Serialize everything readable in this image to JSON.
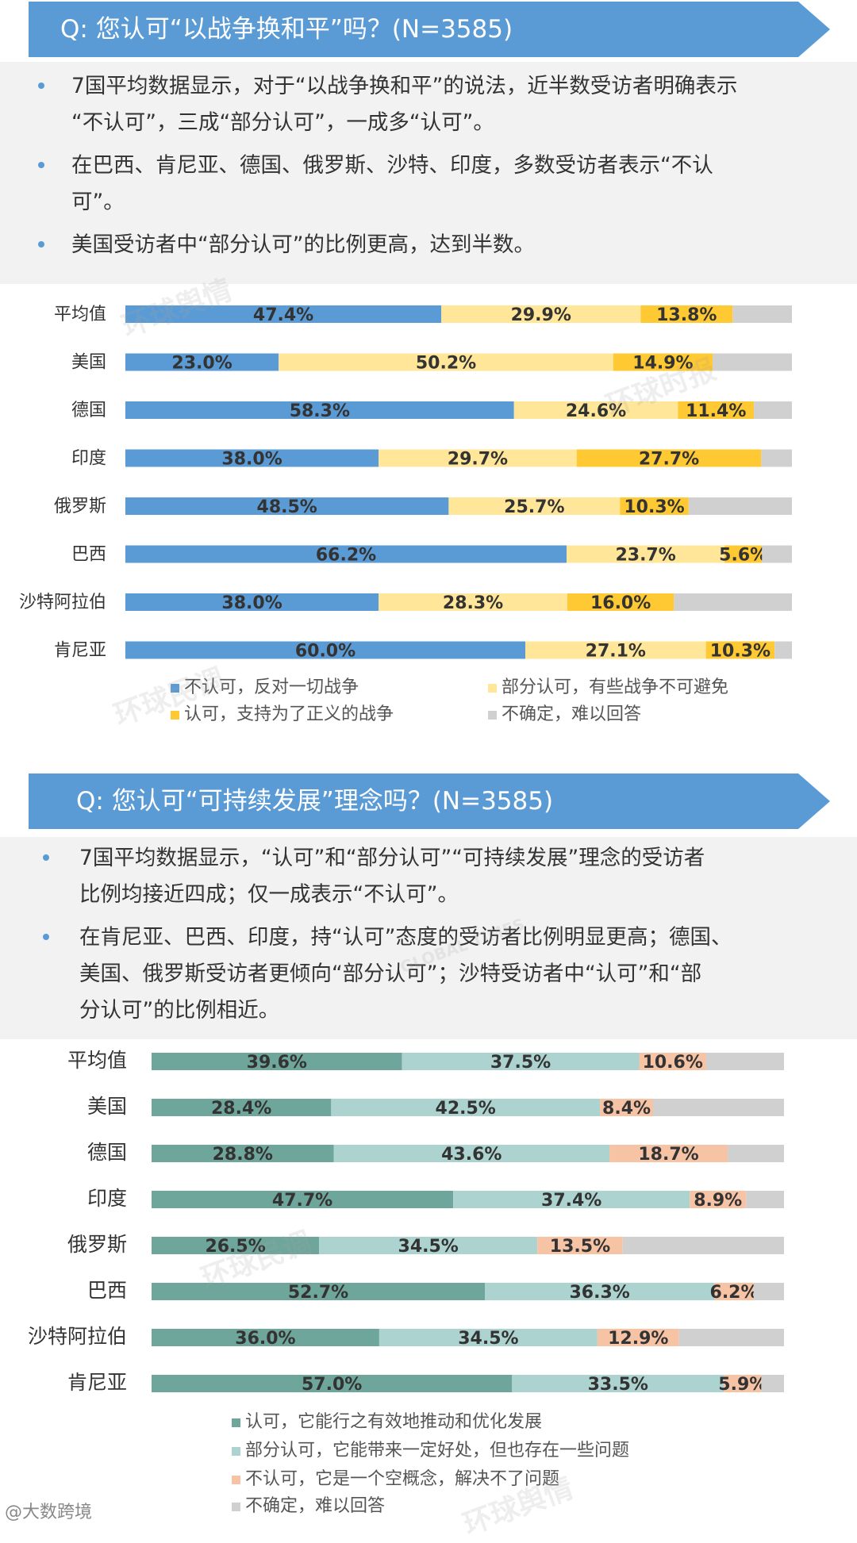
{
  "section1": {
    "banner": "Q: 您认可“以战争换和平”吗？(N=3585)",
    "bullets": [
      [
        "7国平均数据显示，对于“以战争换和平”的说法，近半数受访者明确表示",
        "“不认可”，三成“部分认可”，一成多“认可”。"
      ],
      [
        "在巴西、肯尼亚、德国、俄罗斯、沙特、印度，多数受访者表示“不认",
        "可”。"
      ],
      [
        "美国受访者中“部分认可”的比例更高，达到半数。"
      ]
    ]
  },
  "section2": {
    "banner": "Q: 您认可“可持续发展”理念吗？(N=3585)",
    "bullets": [
      [
        "7国平均数据显示，“认可”和“部分认可”“可持续发展”理念的受访者",
        "比例均接近四成；仅一成表示“不认可”。"
      ],
      [
        "在肯尼亚、巴西、印度，持“认可”态度的受访者比例明显更高；德国、",
        "美国、俄罗斯受访者更倾向“部分认可”；沙特受访者中“认可”和“部",
        "分认可”的比例相近。"
      ]
    ]
  },
  "chart_data": [
    {
      "type": "bar",
      "orientation": "horizontal",
      "stacked": true,
      "categories": [
        "平均值",
        "美国",
        "德国",
        "印度",
        "俄罗斯",
        "巴西",
        "沙特阿拉伯",
        "肯尼亚"
      ],
      "series": [
        {
          "name": "不认可，反对一切战争",
          "color": "#5b9bd5",
          "values": [
            47.4,
            23.0,
            58.3,
            38.0,
            48.5,
            66.2,
            38.0,
            60.0
          ],
          "labels": [
            "47.4%",
            "23.0%",
            "58.3%",
            "38.0%",
            "48.5%",
            "66.2%",
            "38.0%",
            "60.0%"
          ]
        },
        {
          "name": "部分认可，有些战争不可避免",
          "color": "#ffe699",
          "values": [
            29.9,
            50.2,
            24.6,
            29.7,
            25.7,
            23.7,
            28.3,
            27.1
          ],
          "labels": [
            "29.9%",
            "50.2%",
            "24.6%",
            "29.7%",
            "25.7%",
            "23.7%",
            "28.3%",
            "27.1%"
          ]
        },
        {
          "name": "认可，支持为了正义的战争",
          "color": "#ffc933",
          "values": [
            13.8,
            14.9,
            11.4,
            27.7,
            10.3,
            5.6,
            16.0,
            10.3
          ],
          "labels": [
            "13.8%",
            "14.9%",
            "11.4%",
            "27.7%",
            "10.3%",
            "5.6%",
            "16.0%",
            "10.3%"
          ]
        },
        {
          "name": "不确定，难以回答",
          "color": "#d0d0d0",
          "values": [
            8.9,
            11.9,
            5.7,
            4.6,
            15.5,
            4.5,
            17.7,
            2.6
          ],
          "labels": [
            "",
            "",
            "",
            "",
            "",
            "",
            "",
            ""
          ]
        }
      ],
      "xlim": [
        0,
        100
      ],
      "legend_position": "bottom"
    },
    {
      "type": "bar",
      "orientation": "horizontal",
      "stacked": true,
      "categories": [
        "平均值",
        "美国",
        "德国",
        "印度",
        "俄罗斯",
        "巴西",
        "沙特阿拉伯",
        "肯尼亚"
      ],
      "series": [
        {
          "name": "认可，它能行之有效地推动和优化发展",
          "color": "#6fa69b",
          "values": [
            39.6,
            28.4,
            28.8,
            47.7,
            26.5,
            52.7,
            36.0,
            57.0
          ],
          "labels": [
            "39.6%",
            "28.4%",
            "28.8%",
            "47.7%",
            "26.5%",
            "52.7%",
            "36.0%",
            "57.0%"
          ]
        },
        {
          "name": "部分认可，它能带来一定好处，但也存在一些问题",
          "color": "#acd3cf",
          "values": [
            37.5,
            42.5,
            43.6,
            37.4,
            34.5,
            36.3,
            34.5,
            33.5
          ],
          "labels": [
            "37.5%",
            "42.5%",
            "43.6%",
            "37.4%",
            "34.5%",
            "36.3%",
            "34.5%",
            "33.5%"
          ]
        },
        {
          "name": "不认可，它是一个空概念，解决不了问题",
          "color": "#f7c3a5",
          "values": [
            10.6,
            8.4,
            18.7,
            8.9,
            13.5,
            6.2,
            12.9,
            5.9
          ],
          "labels": [
            "10.6%",
            "8.4%",
            "18.7%",
            "8.9%",
            "13.5%",
            "6.2%",
            "12.9%",
            "5.9%"
          ]
        },
        {
          "name": "不确定，难以回答",
          "color": "#d0d0d0",
          "values": [
            12.3,
            20.7,
            8.9,
            6.0,
            25.5,
            4.8,
            16.6,
            3.6
          ],
          "labels": [
            "",
            "",
            "",
            "",
            "",
            "",
            "",
            ""
          ]
        }
      ],
      "xlim": [
        0,
        100
      ],
      "legend_position": "bottom"
    }
  ],
  "watermarks": [
    "环球舆情",
    "环球民调",
    "环球时报",
    "GLOBAL TIMES"
  ],
  "footer": {
    "source": "@大数跨境"
  }
}
